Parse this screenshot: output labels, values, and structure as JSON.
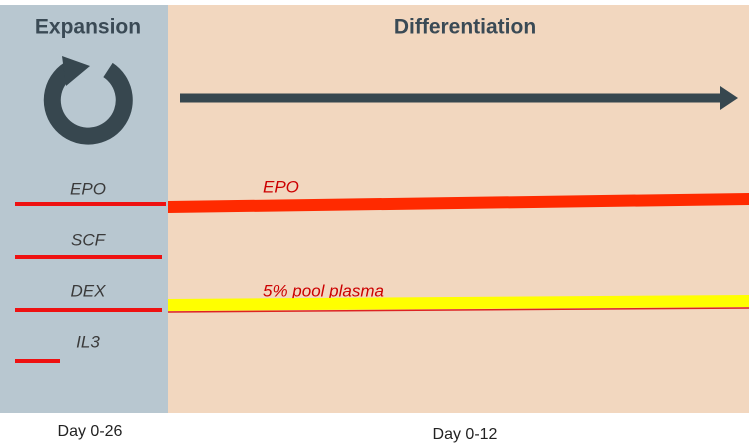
{
  "expansion": {
    "title": "Expansion",
    "period": "Day 0-26",
    "factors": [
      "EPO",
      "SCF",
      "DEX",
      "IL3"
    ]
  },
  "differentiation": {
    "title": "Differentiation",
    "period": "Day 0-12",
    "factors": [
      "EPO",
      "5% pool plasma"
    ]
  }
}
